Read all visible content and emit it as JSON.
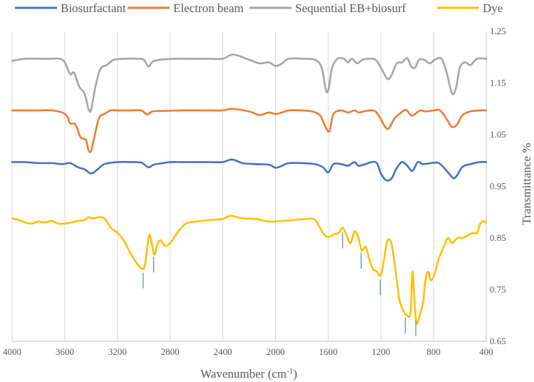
{
  "chart_data": {
    "type": "line",
    "xlabel": "Wavenumber (cm",
    "xlabel_sup": "-1",
    "xlabel_close": ")",
    "ylabel": "Transmittance %",
    "xlim": [
      4000,
      400
    ],
    "ylim": [
      0.65,
      1.25
    ],
    "x_ticks": [
      "4000",
      "3600",
      "3200",
      "2800",
      "2400",
      "2000",
      "1600",
      "1200",
      "800",
      "400"
    ],
    "y_ticks": [
      "1.25",
      "1.15",
      "1.05",
      "0.95",
      "0.85",
      "0.75",
      "0.65"
    ],
    "grid": "vertical",
    "legend_position": "top",
    "series": [
      {
        "name": "Biosurfactant",
        "color": "#4472C4",
        "points": [
          [
            4000,
            0.997
          ],
          [
            3900,
            0.997
          ],
          [
            3800,
            0.995
          ],
          [
            3700,
            0.995
          ],
          [
            3620,
            0.993
          ],
          [
            3560,
            0.995
          ],
          [
            3500,
            0.987
          ],
          [
            3450,
            0.983
          ],
          [
            3400,
            0.975
          ],
          [
            3350,
            0.983
          ],
          [
            3300,
            0.993
          ],
          [
            3200,
            0.997
          ],
          [
            3100,
            0.997
          ],
          [
            3020,
            0.996
          ],
          [
            2965,
            0.987
          ],
          [
            2925,
            0.992
          ],
          [
            2855,
            0.995
          ],
          [
            2800,
            0.997
          ],
          [
            2700,
            0.997
          ],
          [
            2600,
            0.997
          ],
          [
            2500,
            0.997
          ],
          [
            2400,
            0.997
          ],
          [
            2330,
            1.002
          ],
          [
            2250,
            0.995
          ],
          [
            2150,
            0.993
          ],
          [
            2050,
            0.992
          ],
          [
            2000,
            0.986
          ],
          [
            1950,
            0.99
          ],
          [
            1900,
            0.995
          ],
          [
            1800,
            0.995
          ],
          [
            1700,
            0.993
          ],
          [
            1640,
            0.987
          ],
          [
            1600,
            0.977
          ],
          [
            1560,
            0.993
          ],
          [
            1500,
            0.993
          ],
          [
            1450,
            0.99
          ],
          [
            1400,
            0.997
          ],
          [
            1370,
            0.99
          ],
          [
            1320,
            0.993
          ],
          [
            1270,
            0.997
          ],
          [
            1230,
            0.995
          ],
          [
            1200,
            0.975
          ],
          [
            1160,
            0.962
          ],
          [
            1120,
            0.965
          ],
          [
            1080,
            0.985
          ],
          [
            1040,
            0.997
          ],
          [
            1000,
            0.99
          ],
          [
            960,
            0.98
          ],
          [
            920,
            0.997
          ],
          [
            880,
            0.993
          ],
          [
            820,
            0.995
          ],
          [
            760,
            0.995
          ],
          [
            700,
            0.98
          ],
          [
            650,
            0.966
          ],
          [
            620,
            0.972
          ],
          [
            580,
            0.988
          ],
          [
            520,
            0.993
          ],
          [
            450,
            0.997
          ],
          [
            400,
            0.997
          ]
        ]
      },
      {
        "name": "Electron beam",
        "color": "#ED7D31",
        "points": [
          [
            4000,
            1.097
          ],
          [
            3900,
            1.097
          ],
          [
            3800,
            1.097
          ],
          [
            3700,
            1.097
          ],
          [
            3620,
            1.093
          ],
          [
            3580,
            1.085
          ],
          [
            3560,
            1.072
          ],
          [
            3520,
            1.07
          ],
          [
            3480,
            1.045
          ],
          [
            3440,
            1.04
          ],
          [
            3420,
            1.02
          ],
          [
            3400,
            1.018
          ],
          [
            3380,
            1.04
          ],
          [
            3340,
            1.082
          ],
          [
            3300,
            1.09
          ],
          [
            3250,
            1.097
          ],
          [
            3200,
            1.097
          ],
          [
            3100,
            1.097
          ],
          [
            3020,
            1.097
          ],
          [
            2975,
            1.089
          ],
          [
            2935,
            1.095
          ],
          [
            2850,
            1.096
          ],
          [
            2700,
            1.097
          ],
          [
            2500,
            1.097
          ],
          [
            2400,
            1.097
          ],
          [
            2330,
            1.1
          ],
          [
            2200,
            1.095
          ],
          [
            2120,
            1.088
          ],
          [
            2050,
            1.093
          ],
          [
            2000,
            1.09
          ],
          [
            1950,
            1.093
          ],
          [
            1900,
            1.097
          ],
          [
            1800,
            1.097
          ],
          [
            1720,
            1.095
          ],
          [
            1660,
            1.087
          ],
          [
            1620,
            1.065
          ],
          [
            1590,
            1.057
          ],
          [
            1560,
            1.09
          ],
          [
            1500,
            1.097
          ],
          [
            1450,
            1.093
          ],
          [
            1400,
            1.097
          ],
          [
            1370,
            1.093
          ],
          [
            1330,
            1.095
          ],
          [
            1280,
            1.097
          ],
          [
            1240,
            1.095
          ],
          [
            1200,
            1.08
          ],
          [
            1170,
            1.066
          ],
          [
            1140,
            1.062
          ],
          [
            1100,
            1.08
          ],
          [
            1060,
            1.09
          ],
          [
            1010,
            1.098
          ],
          [
            970,
            1.087
          ],
          [
            940,
            1.09
          ],
          [
            900,
            1.097
          ],
          [
            860,
            1.095
          ],
          [
            800,
            1.097
          ],
          [
            750,
            1.097
          ],
          [
            700,
            1.08
          ],
          [
            660,
            1.065
          ],
          [
            620,
            1.07
          ],
          [
            580,
            1.088
          ],
          [
            520,
            1.095
          ],
          [
            450,
            1.097
          ],
          [
            400,
            1.097
          ]
        ]
      },
      {
        "name": "Sequential EB+biosurf",
        "color": "#A5A5A5",
        "points": [
          [
            4000,
            1.193
          ],
          [
            3900,
            1.197
          ],
          [
            3800,
            1.197
          ],
          [
            3700,
            1.197
          ],
          [
            3640,
            1.197
          ],
          [
            3600,
            1.19
          ],
          [
            3560,
            1.167
          ],
          [
            3530,
            1.17
          ],
          [
            3490,
            1.143
          ],
          [
            3450,
            1.13
          ],
          [
            3420,
            1.1
          ],
          [
            3400,
            1.098
          ],
          [
            3370,
            1.14
          ],
          [
            3330,
            1.177
          ],
          [
            3280,
            1.185
          ],
          [
            3230,
            1.195
          ],
          [
            3150,
            1.197
          ],
          [
            3050,
            1.197
          ],
          [
            3000,
            1.195
          ],
          [
            2965,
            1.182
          ],
          [
            2930,
            1.192
          ],
          [
            2850,
            1.196
          ],
          [
            2750,
            1.197
          ],
          [
            2600,
            1.197
          ],
          [
            2500,
            1.197
          ],
          [
            2400,
            1.197
          ],
          [
            2320,
            1.205
          ],
          [
            2200,
            1.195
          ],
          [
            2120,
            1.188
          ],
          [
            2050,
            1.19
          ],
          [
            2000,
            1.183
          ],
          [
            1950,
            1.188
          ],
          [
            1900,
            1.197
          ],
          [
            1800,
            1.197
          ],
          [
            1700,
            1.195
          ],
          [
            1650,
            1.18
          ],
          [
            1620,
            1.14
          ],
          [
            1600,
            1.135
          ],
          [
            1570,
            1.18
          ],
          [
            1530,
            1.197
          ],
          [
            1480,
            1.197
          ],
          [
            1450,
            1.19
          ],
          [
            1420,
            1.197
          ],
          [
            1380,
            1.188
          ],
          [
            1340,
            1.195
          ],
          [
            1290,
            1.197
          ],
          [
            1240,
            1.195
          ],
          [
            1200,
            1.18
          ],
          [
            1150,
            1.158
          ],
          [
            1120,
            1.165
          ],
          [
            1080,
            1.188
          ],
          [
            1040,
            1.19
          ],
          [
            1000,
            1.198
          ],
          [
            970,
            1.182
          ],
          [
            940,
            1.18
          ],
          [
            910,
            1.195
          ],
          [
            870,
            1.195
          ],
          [
            830,
            1.188
          ],
          [
            790,
            1.195
          ],
          [
            740,
            1.197
          ],
          [
            700,
            1.17
          ],
          [
            660,
            1.13
          ],
          [
            630,
            1.14
          ],
          [
            600,
            1.18
          ],
          [
            560,
            1.19
          ],
          [
            520,
            1.185
          ],
          [
            470,
            1.197
          ],
          [
            400,
            1.197
          ]
        ]
      },
      {
        "name": "Dye",
        "color": "#FFC000",
        "points": [
          [
            4000,
            0.888
          ],
          [
            3950,
            0.885
          ],
          [
            3900,
            0.88
          ],
          [
            3850,
            0.878
          ],
          [
            3800,
            0.882
          ],
          [
            3750,
            0.88
          ],
          [
            3700,
            0.883
          ],
          [
            3650,
            0.878
          ],
          [
            3600,
            0.878
          ],
          [
            3550,
            0.88
          ],
          [
            3500,
            0.883
          ],
          [
            3450,
            0.885
          ],
          [
            3420,
            0.89
          ],
          [
            3380,
            0.888
          ],
          [
            3350,
            0.89
          ],
          [
            3300,
            0.888
          ],
          [
            3250,
            0.87
          ],
          [
            3200,
            0.86
          ],
          [
            3150,
            0.845
          ],
          [
            3100,
            0.82
          ],
          [
            3050,
            0.8
          ],
          [
            3010,
            0.79
          ],
          [
            2990,
            0.8
          ],
          [
            2960,
            0.855
          ],
          [
            2940,
            0.84
          ],
          [
            2920,
            0.818
          ],
          [
            2895,
            0.84
          ],
          [
            2870,
            0.845
          ],
          [
            2840,
            0.835
          ],
          [
            2800,
            0.84
          ],
          [
            2740,
            0.862
          ],
          [
            2680,
            0.878
          ],
          [
            2600,
            0.882
          ],
          [
            2500,
            0.885
          ],
          [
            2400,
            0.887
          ],
          [
            2340,
            0.893
          ],
          [
            2250,
            0.888
          ],
          [
            2150,
            0.887
          ],
          [
            2050,
            0.882
          ],
          [
            1950,
            0.883
          ],
          [
            1850,
            0.885
          ],
          [
            1760,
            0.887
          ],
          [
            1700,
            0.885
          ],
          [
            1640,
            0.86
          ],
          [
            1600,
            0.852
          ],
          [
            1550,
            0.858
          ],
          [
            1520,
            0.86
          ],
          [
            1490,
            0.87
          ],
          [
            1460,
            0.855
          ],
          [
            1430,
            0.84
          ],
          [
            1400,
            0.863
          ],
          [
            1370,
            0.85
          ],
          [
            1345,
            0.826
          ],
          [
            1315,
            0.833
          ],
          [
            1290,
            0.81
          ],
          [
            1260,
            0.79
          ],
          [
            1230,
            0.785
          ],
          [
            1200,
            0.778
          ],
          [
            1175,
            0.81
          ],
          [
            1150,
            0.845
          ],
          [
            1120,
            0.84
          ],
          [
            1090,
            0.79
          ],
          [
            1060,
            0.732
          ],
          [
            1030,
            0.71
          ],
          [
            1000,
            0.7
          ],
          [
            975,
            0.705
          ],
          [
            960,
            0.785
          ],
          [
            945,
            0.73
          ],
          [
            930,
            0.685
          ],
          [
            905,
            0.7
          ],
          [
            880,
            0.725
          ],
          [
            860,
            0.77
          ],
          [
            840,
            0.785
          ],
          [
            820,
            0.768
          ],
          [
            790,
            0.782
          ],
          [
            760,
            0.81
          ],
          [
            720,
            0.835
          ],
          [
            690,
            0.85
          ],
          [
            660,
            0.84
          ],
          [
            620,
            0.85
          ],
          [
            580,
            0.85
          ],
          [
            540,
            0.855
          ],
          [
            500,
            0.86
          ],
          [
            470,
            0.86
          ],
          [
            440,
            0.88
          ],
          [
            400,
            0.882
          ]
        ]
      }
    ],
    "annotation_ticks_x": [
      3005,
      2925,
      1490,
      1350,
      1205,
      1015,
      935
    ]
  }
}
